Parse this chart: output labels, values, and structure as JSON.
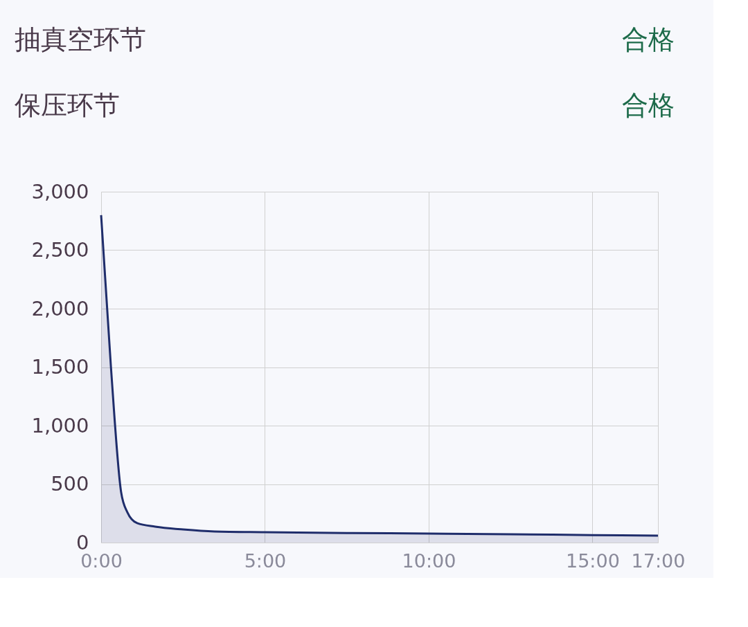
{
  "chart_data": {
    "type": "area",
    "annotations": [
      "抽真空环节",
      "合格",
      "保压环节",
      "合格"
    ],
    "x": [
      0,
      0.3,
      0.61,
      0.8,
      1.1,
      1.65,
      2.5,
      3.46,
      5,
      7.5,
      10,
      12.5,
      15,
      17
    ],
    "series": [
      {
        "color": "#1f2d6b",
        "values": [
          2800,
          1500,
          432,
          260,
          166,
          136,
          112,
          95,
          89,
          82,
          77,
          71,
          64,
          59
        ]
      }
    ],
    "xlim": [
      0,
      17
    ],
    "xticks": [
      {
        "value": 0,
        "label": "0:00"
      },
      {
        "value": 5,
        "label": "5:00"
      },
      {
        "value": 10,
        "label": "10:00"
      },
      {
        "value": 15,
        "label": "15:00"
      },
      {
        "value": 17,
        "label": "17:00"
      }
    ],
    "ylim": [
      0,
      3000
    ],
    "yticks": [
      0,
      500,
      {
        "value": 1000,
        "label": "1,000"
      },
      {
        "value": 1500,
        "label": "1,500"
      },
      {
        "value": 2000,
        "label": "2,000"
      },
      {
        "value": 2500,
        "label": "2,500"
      },
      {
        "value": 3000,
        "label": "3,000"
      }
    ],
    "grid": true
  }
}
